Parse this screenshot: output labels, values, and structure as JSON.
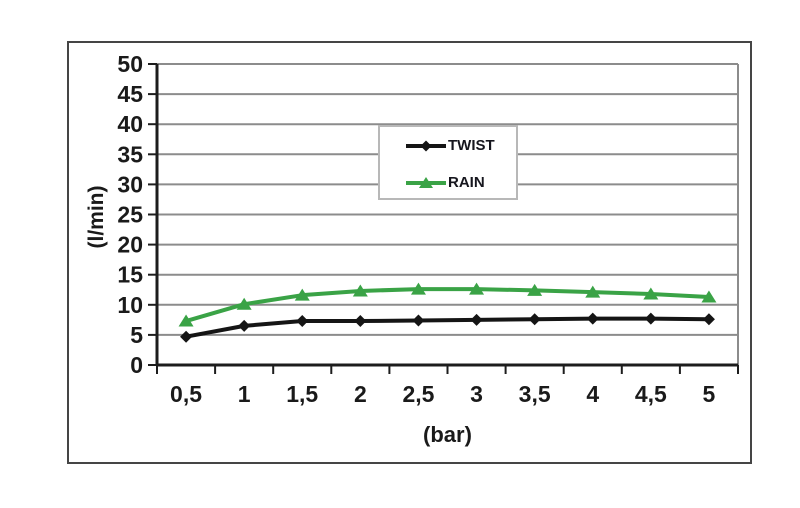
{
  "chart_data": {
    "type": "line",
    "title": "",
    "xlabel": "(bar)",
    "ylabel": "(l/min)",
    "x_values": [
      0.5,
      1,
      1.5,
      2,
      2.5,
      3,
      3.5,
      4,
      4.5,
      5
    ],
    "x_tick_labels": [
      "0,5",
      "1",
      "1,5",
      "2",
      "2,5",
      "3",
      "3,5",
      "4",
      "4,5",
      "5"
    ],
    "ylim": [
      0,
      50
    ],
    "y_tick_step": 5,
    "y_tick_labels": [
      "0",
      "5",
      "10",
      "15",
      "20",
      "25",
      "30",
      "35",
      "40",
      "45",
      "50"
    ],
    "grid": true,
    "legend_position": "upper-center",
    "series": [
      {
        "name": "TWIST",
        "marker": "diamond",
        "color": "#151515",
        "values": [
          4.7,
          6.5,
          7.3,
          7.3,
          7.4,
          7.5,
          7.6,
          7.7,
          7.7,
          7.6
        ]
      },
      {
        "name": "RAIN",
        "marker": "triangle",
        "color": "#3aa346",
        "values": [
          7.3,
          10.1,
          11.6,
          12.3,
          12.6,
          12.6,
          12.4,
          12.1,
          11.8,
          11.3
        ]
      }
    ]
  },
  "colors": {
    "gridline": "#8c8c8c",
    "axis": "#1d1d1d",
    "tick_text": "#1a1a1a",
    "frame_border": "#454545",
    "plot_right_border": "#8c8c8c",
    "background": "#ffffff"
  }
}
